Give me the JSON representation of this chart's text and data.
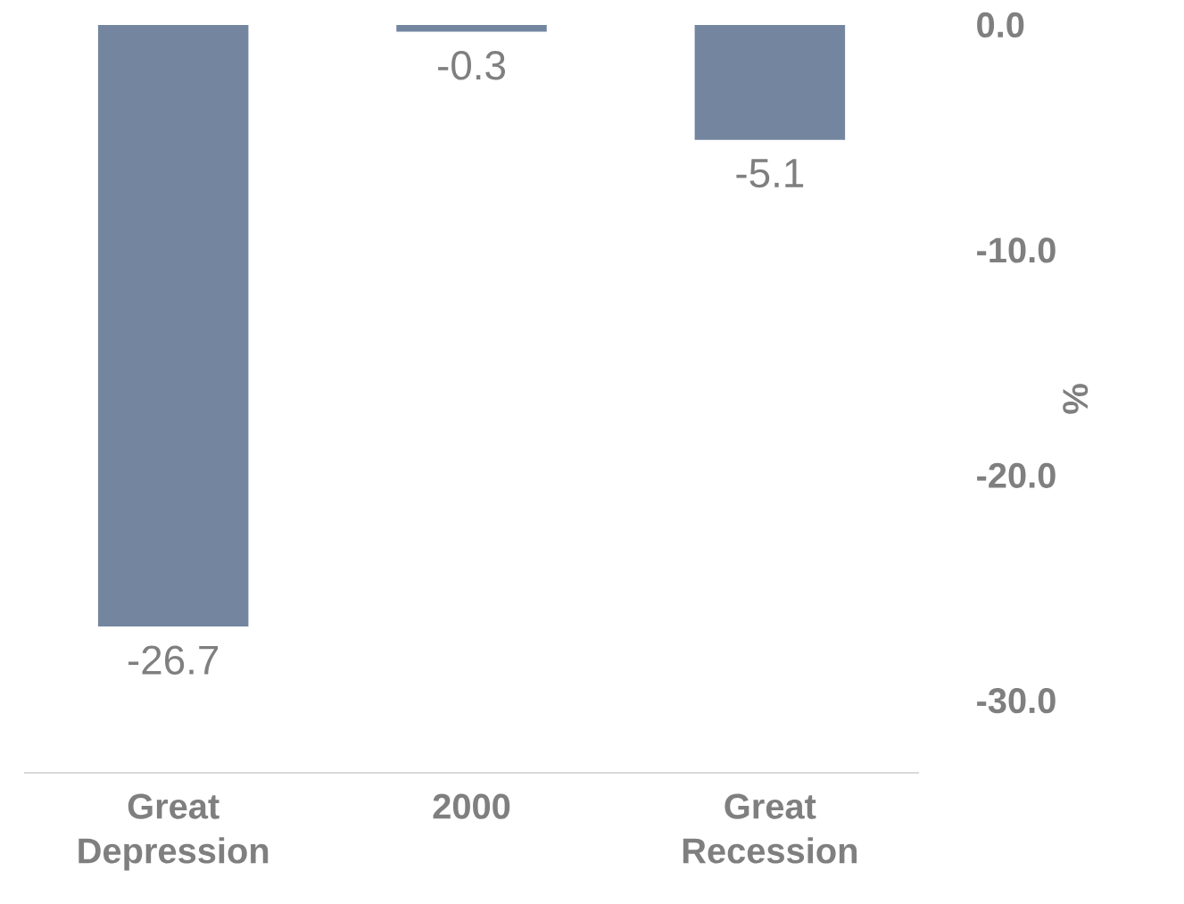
{
  "chart_data": {
    "type": "bar",
    "categories": [
      "Great Depression",
      "2000",
      "Great Recession"
    ],
    "values": [
      -26.7,
      -0.3,
      -5.1
    ],
    "color": "#74869f",
    "ylabel": "%",
    "ylim": [
      -33.2,
      0
    ],
    "yticks": [
      {
        "value": 0,
        "label": "0.0"
      },
      {
        "value": -10,
        "label": "-10.0"
      },
      {
        "value": -20,
        "label": "-20.0"
      },
      {
        "value": -30,
        "label": "-30.0"
      }
    ],
    "data_labels": true
  }
}
